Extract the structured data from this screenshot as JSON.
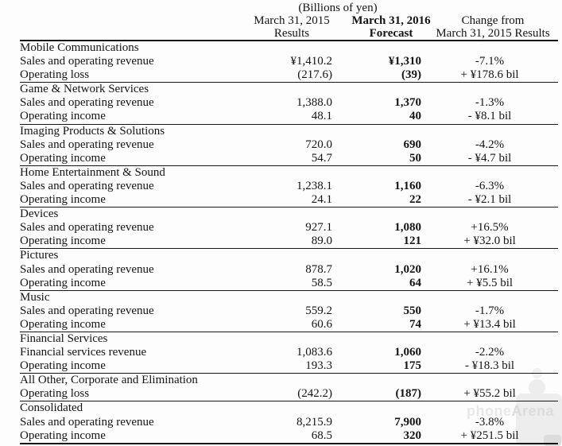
{
  "unit_label": "(Billions of yen)",
  "header": {
    "results_line1": "March 31, 2015",
    "results_line2": "Results",
    "forecast_line1": "March 31, 2016",
    "forecast_line2": "Forecast",
    "change_line1": "Change from",
    "change_line2": "March 31, 2015 Results"
  },
  "sections": [
    {
      "name": "Mobile Communications",
      "rows": [
        {
          "label": "Sales and operating revenue",
          "results": "¥1,410.2",
          "forecast": "¥1,310",
          "change": "-7.1%"
        },
        {
          "label": "Operating loss",
          "results": "(217.6)",
          "forecast": "(39)",
          "change": "+ ¥178.6 bil"
        }
      ]
    },
    {
      "name": "Game & Network Services",
      "rows": [
        {
          "label": "Sales and operating revenue",
          "results": "1,388.0",
          "forecast": "1,370",
          "change": "-1.3%"
        },
        {
          "label": "Operating income",
          "results": "48.1",
          "forecast": "40",
          "change": "- ¥8.1 bil"
        }
      ]
    },
    {
      "name": "Imaging Products & Solutions",
      "rows": [
        {
          "label": "Sales and operating revenue",
          "results": "720.0",
          "forecast": "690",
          "change": "-4.2%"
        },
        {
          "label": "Operating income",
          "results": "54.7",
          "forecast": "50",
          "change": "- ¥4.7 bil"
        }
      ]
    },
    {
      "name": "Home Entertainment & Sound",
      "rows": [
        {
          "label": "Sales and operating revenue",
          "results": "1,238.1",
          "forecast": "1,160",
          "change": "-6.3%"
        },
        {
          "label": "Operating income",
          "results": "24.1",
          "forecast": "22",
          "change": "- ¥2.1 bil"
        }
      ]
    },
    {
      "name": "Devices",
      "rows": [
        {
          "label": "Sales and operating revenue",
          "results": "927.1",
          "forecast": "1,080",
          "change": "+16.5%"
        },
        {
          "label": "Operating income",
          "results": "89.0",
          "forecast": "121",
          "change": "+ ¥32.0 bil"
        }
      ]
    },
    {
      "name": "Pictures",
      "rows": [
        {
          "label": "Sales and operating revenue",
          "results": "878.7",
          "forecast": "1,020",
          "change": "+16.1%"
        },
        {
          "label": "Operating income",
          "results": "58.5",
          "forecast": "64",
          "change": "+ ¥5.5 bil"
        }
      ]
    },
    {
      "name": "Music",
      "rows": [
        {
          "label": "Sales and operating revenue",
          "results": "559.2",
          "forecast": "550",
          "change": "-1.7%"
        },
        {
          "label": "Operating income",
          "results": "60.6",
          "forecast": "74",
          "change": "+ ¥13.4 bil"
        }
      ]
    },
    {
      "name": "Financial Services",
      "rows": [
        {
          "label": "Financial services revenue",
          "results": "1,083.6",
          "forecast": "1,060",
          "change": "-2.2%"
        },
        {
          "label": "Operating income",
          "results": "193.3",
          "forecast": "175",
          "change": "- ¥18.3 bil"
        }
      ]
    },
    {
      "name": "All Other, Corporate and Elimination",
      "rows": [
        {
          "label": "Operating loss",
          "results": "(242.2)",
          "forecast": "(187)",
          "change": "+ ¥55.2 bil"
        }
      ]
    },
    {
      "name": "Consolidated",
      "rows": [
        {
          "label": "Sales and operating revenue",
          "results": "8,215.9",
          "forecast": "7,900",
          "change": "-3.8%"
        },
        {
          "label": "Operating income",
          "results": "68.5",
          "forecast": "320",
          "change": "+ ¥251.5 bil"
        }
      ]
    }
  ],
  "watermark": {
    "brand_part1": "phone",
    "brand_part2": "Arena"
  },
  "colors": {
    "background": "#fdfdfd",
    "text": "#141414",
    "rule": "#161616",
    "watermark_light": "#ededed"
  }
}
